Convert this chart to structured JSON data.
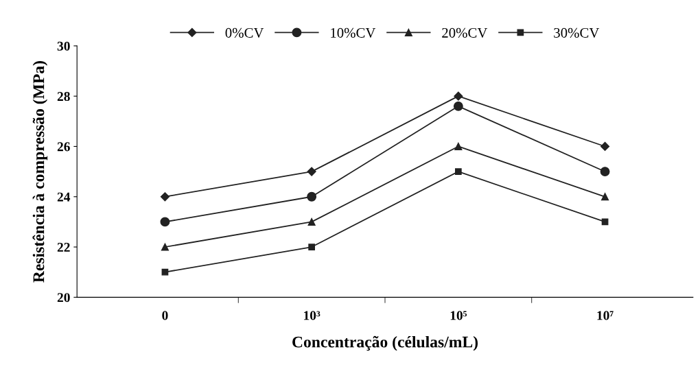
{
  "chart_data": {
    "type": "line",
    "xlabel": "Concentração (células/mL)",
    "ylabel": "Resistência à compressão (MPa)",
    "categories": [
      "0",
      "10³",
      "10⁵",
      "10⁷"
    ],
    "series": [
      {
        "name": "0%CV",
        "color": "#222222",
        "marker": "diamond",
        "values": [
          24,
          25,
          28,
          26
        ]
      },
      {
        "name": "10%CV",
        "color": "#222222",
        "marker": "circle",
        "values": [
          23,
          24,
          27.6,
          25
        ]
      },
      {
        "name": "20%CV",
        "color": "#222222",
        "marker": "triangle",
        "values": [
          22,
          23,
          26,
          24
        ]
      },
      {
        "name": "30%CV",
        "color": "#222222",
        "marker": "square",
        "values": [
          21,
          22,
          25,
          23
        ]
      }
    ],
    "ylim": [
      20,
      30
    ],
    "yticks": [
      20,
      22,
      24,
      26,
      28,
      30
    ],
    "grid": false,
    "legend": "top",
    "line_style": "solid"
  }
}
